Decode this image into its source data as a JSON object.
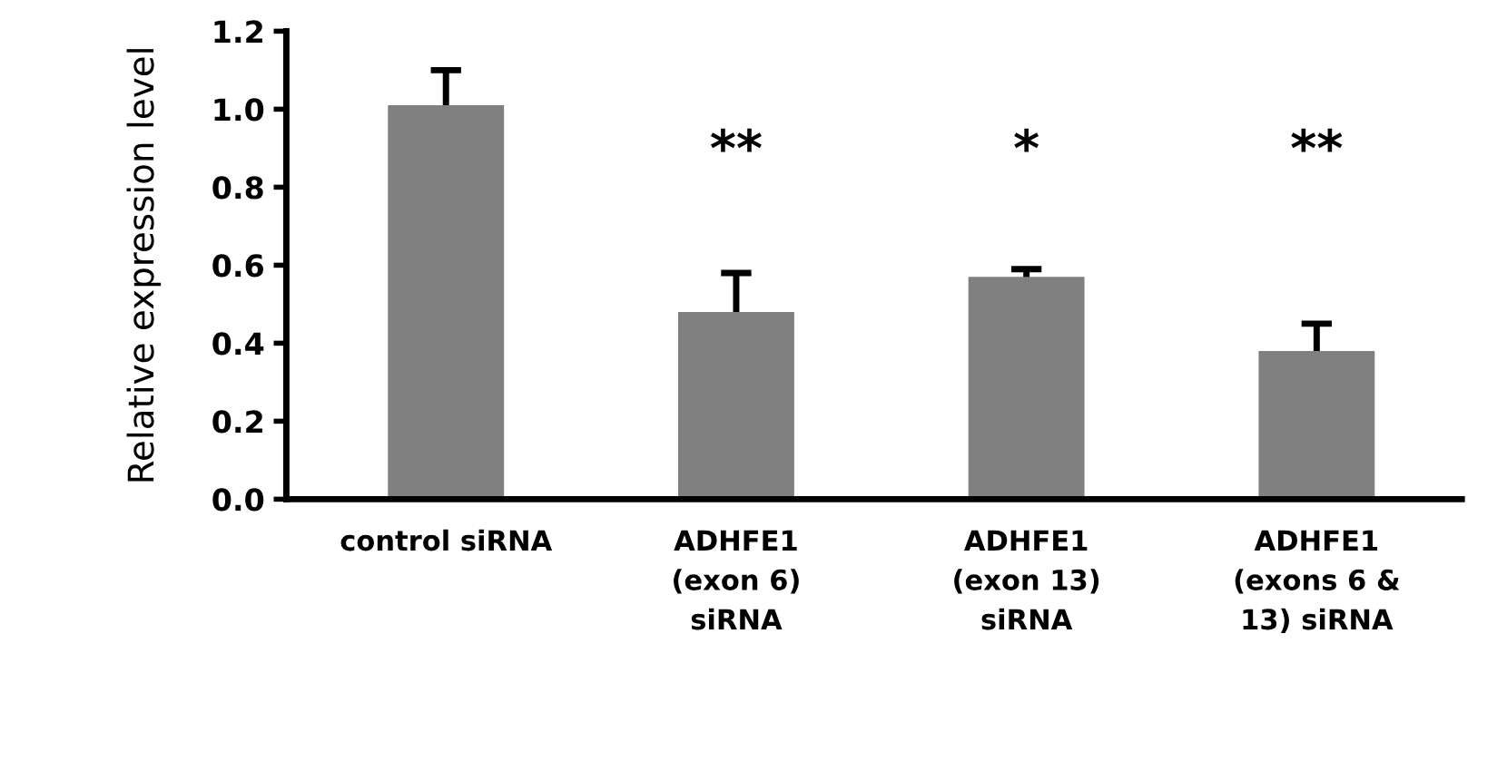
{
  "chart_data": {
    "type": "bar",
    "ylabel": "Relative expression level",
    "categories": [
      "control siRNA",
      "ADHFE1\n(exon 6)\nsiRNA",
      "ADHFE1\n(exon 13)\nsiRNA",
      "ADHFE1\n(exons 6 &\n13) siRNA"
    ],
    "values": [
      1.01,
      0.48,
      0.57,
      0.38
    ],
    "errors": [
      0.09,
      0.1,
      0.02,
      0.07
    ],
    "color": "#808080",
    "ylim": [
      0,
      1.2
    ],
    "yticks": [
      {
        "value": 0,
        "label": "0.0"
      },
      0.2,
      0.4,
      0.6,
      0.8,
      {
        "value": 1,
        "label": "1.0"
      },
      1.2
    ],
    "annotations": [
      "**",
      "*",
      "**"
    ],
    "grid": false,
    "legend": false
  }
}
